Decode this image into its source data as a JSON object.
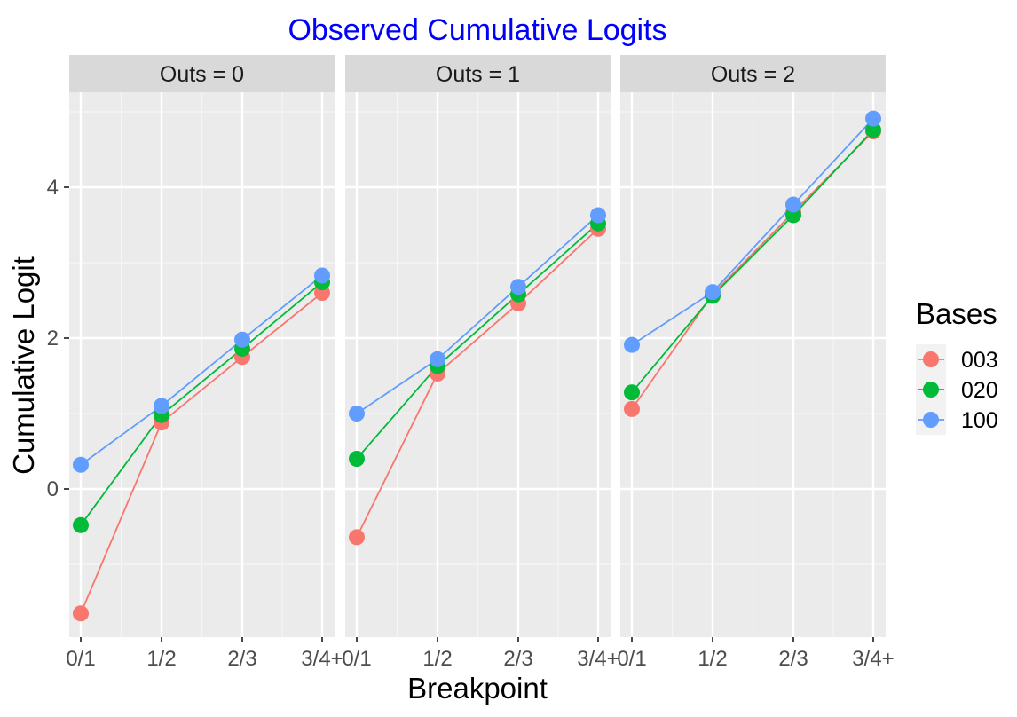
{
  "chart_data": {
    "type": "line",
    "title": "Observed Cumulative Logits",
    "xlabel": "Breakpoint",
    "ylabel": "Cumulative Logit",
    "categories": [
      "0/1",
      "1/2",
      "2/3",
      "3/4+"
    ],
    "y_ticks": [
      "0",
      "2",
      "4"
    ],
    "y_tick_values": [
      0,
      2,
      4
    ],
    "ylim": [
      -1.9,
      5.2
    ],
    "grid": true,
    "legend": {
      "title": "Bases",
      "placement": "right"
    },
    "facets": [
      {
        "label": "Outs = 0",
        "series": [
          {
            "name": "003",
            "values": [
              -1.65,
              0.88,
              1.75,
              2.6
            ]
          },
          {
            "name": "020",
            "values": [
              -0.48,
              0.98,
              1.86,
              2.74
            ]
          },
          {
            "name": "100",
            "values": [
              0.32,
              1.1,
              1.98,
              2.83
            ]
          }
        ]
      },
      {
        "label": "Outs = 1",
        "series": [
          {
            "name": "003",
            "values": [
              -0.64,
              1.53,
              2.46,
              3.45
            ]
          },
          {
            "name": "020",
            "values": [
              0.4,
              1.63,
              2.58,
              3.52
            ]
          },
          {
            "name": "100",
            "values": [
              1.0,
              1.72,
              2.68,
              3.63
            ]
          }
        ]
      },
      {
        "label": "Outs = 2",
        "series": [
          {
            "name": "003",
            "values": [
              1.06,
              2.58,
              3.67,
              4.74
            ]
          },
          {
            "name": "020",
            "values": [
              1.28,
              2.56,
              3.63,
              4.76
            ]
          },
          {
            "name": "100",
            "values": [
              1.91,
              2.61,
              3.77,
              4.91
            ]
          }
        ]
      }
    ],
    "colors": {
      "003": "#F8766D",
      "020": "#00BA38",
      "100": "#619CFF"
    },
    "title_color": "#0000FF"
  }
}
